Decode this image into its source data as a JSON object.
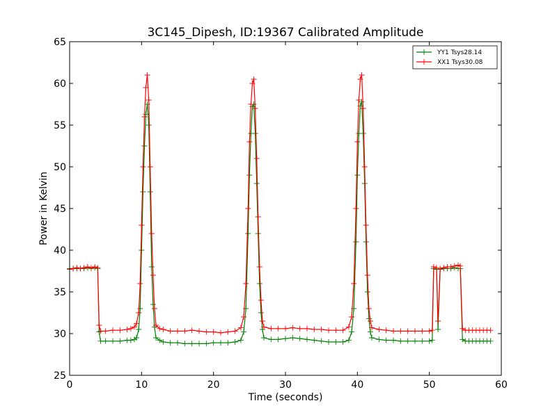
{
  "chart_data": {
    "type": "line",
    "title": "3C145_Dipesh, ID:19367 Calibrated Amplitude",
    "xlabel": "Time (seconds)",
    "ylabel": "Power in Kelvin",
    "xlim": [
      0,
      60
    ],
    "ylim": [
      25,
      65
    ],
    "xticks": [
      "0",
      "10",
      "20",
      "30",
      "40",
      "50",
      "60"
    ],
    "yticks": [
      "25",
      "30",
      "35",
      "40",
      "45",
      "50",
      "55",
      "60",
      "65"
    ],
    "grid": false,
    "legend_position": "top-right",
    "series": [
      {
        "name": "YY1 Tsys28.14",
        "color": "#008000",
        "marker": "plus",
        "points": [
          [
            0.0,
            37.8
          ],
          [
            0.5,
            37.8
          ],
          [
            1.0,
            37.8
          ],
          [
            1.5,
            37.8
          ],
          [
            2.0,
            37.8
          ],
          [
            2.5,
            37.9
          ],
          [
            3.0,
            37.8
          ],
          [
            3.5,
            37.9
          ],
          [
            3.9,
            37.8
          ],
          [
            4.1,
            30.2
          ],
          [
            4.3,
            29.1
          ],
          [
            5.0,
            29.1
          ],
          [
            6.0,
            29.1
          ],
          [
            7.0,
            29.1
          ],
          [
            8.0,
            29.2
          ],
          [
            8.5,
            29.2
          ],
          [
            9.0,
            29.3
          ],
          [
            9.3,
            29.5
          ],
          [
            9.6,
            30.5
          ],
          [
            9.8,
            33.0
          ],
          [
            10.0,
            40.0
          ],
          [
            10.2,
            47.0
          ],
          [
            10.4,
            52.5
          ],
          [
            10.6,
            56.3
          ],
          [
            10.8,
            57.5
          ],
          [
            11.0,
            55.0
          ],
          [
            11.2,
            47.0
          ],
          [
            11.4,
            38.0
          ],
          [
            11.6,
            33.5
          ],
          [
            11.8,
            30.8
          ],
          [
            12.0,
            29.5
          ],
          [
            12.5,
            29.2
          ],
          [
            13.0,
            29.0
          ],
          [
            14.0,
            28.9
          ],
          [
            15.0,
            28.9
          ],
          [
            16.0,
            28.8
          ],
          [
            17.0,
            28.8
          ],
          [
            18.0,
            28.8
          ],
          [
            19.0,
            28.8
          ],
          [
            20.0,
            28.9
          ],
          [
            21.0,
            28.9
          ],
          [
            22.0,
            28.9
          ],
          [
            23.0,
            29.0
          ],
          [
            23.8,
            29.2
          ],
          [
            24.2,
            30.2
          ],
          [
            24.5,
            33.0
          ],
          [
            24.8,
            42.0
          ],
          [
            25.0,
            49.0
          ],
          [
            25.2,
            54.0
          ],
          [
            25.4,
            57.2
          ],
          [
            25.6,
            57.5
          ],
          [
            25.8,
            54.0
          ],
          [
            26.0,
            48.0
          ],
          [
            26.2,
            42.0
          ],
          [
            26.4,
            36.0
          ],
          [
            26.6,
            32.5
          ],
          [
            26.8,
            30.5
          ],
          [
            27.0,
            29.5
          ],
          [
            28.0,
            29.3
          ],
          [
            29.0,
            29.3
          ],
          [
            30.0,
            29.4
          ],
          [
            31.0,
            29.5
          ],
          [
            32.0,
            29.4
          ],
          [
            33.0,
            29.3
          ],
          [
            34.0,
            29.2
          ],
          [
            35.0,
            29.1
          ],
          [
            36.0,
            29.0
          ],
          [
            37.0,
            29.0
          ],
          [
            38.0,
            29.0
          ],
          [
            38.8,
            29.2
          ],
          [
            39.2,
            30.2
          ],
          [
            39.5,
            33.0
          ],
          [
            39.8,
            41.0
          ],
          [
            40.0,
            49.0
          ],
          [
            40.2,
            54.0
          ],
          [
            40.4,
            57.3
          ],
          [
            40.6,
            57.8
          ],
          [
            40.8,
            54.0
          ],
          [
            41.0,
            48.0
          ],
          [
            41.2,
            41.0
          ],
          [
            41.4,
            35.0
          ],
          [
            41.6,
            31.8
          ],
          [
            41.8,
            30.2
          ],
          [
            42.0,
            29.5
          ],
          [
            43.0,
            29.3
          ],
          [
            44.0,
            29.2
          ],
          [
            45.0,
            29.2
          ],
          [
            46.0,
            29.1
          ],
          [
            47.0,
            29.1
          ],
          [
            48.0,
            29.1
          ],
          [
            49.0,
            29.1
          ],
          [
            50.0,
            29.1
          ],
          [
            50.4,
            29.2
          ],
          [
            50.6,
            37.8
          ],
          [
            51.0,
            37.7
          ],
          [
            51.2,
            30.5
          ],
          [
            51.5,
            37.7
          ],
          [
            52.0,
            37.8
          ],
          [
            52.5,
            37.8
          ],
          [
            53.0,
            37.8
          ],
          [
            53.5,
            37.9
          ],
          [
            54.0,
            37.8
          ],
          [
            54.3,
            37.8
          ],
          [
            54.6,
            29.3
          ],
          [
            55.0,
            29.1
          ],
          [
            55.5,
            29.1
          ],
          [
            56.0,
            29.1
          ],
          [
            56.5,
            29.1
          ],
          [
            57.0,
            29.1
          ],
          [
            57.5,
            29.1
          ],
          [
            58.0,
            29.1
          ],
          [
            58.5,
            29.1
          ]
        ]
      },
      {
        "name": "XX1 Tsys30.08",
        "color": "#ff0000",
        "marker": "plus",
        "points": [
          [
            0.0,
            37.7
          ],
          [
            0.5,
            37.8
          ],
          [
            1.0,
            37.9
          ],
          [
            1.5,
            37.8
          ],
          [
            2.0,
            37.9
          ],
          [
            2.5,
            38.0
          ],
          [
            3.0,
            37.9
          ],
          [
            3.5,
            38.0
          ],
          [
            3.9,
            37.9
          ],
          [
            4.1,
            31.0
          ],
          [
            4.3,
            30.3
          ],
          [
            5.0,
            30.3
          ],
          [
            6.0,
            30.4
          ],
          [
            7.0,
            30.4
          ],
          [
            8.0,
            30.5
          ],
          [
            8.5,
            30.6
          ],
          [
            9.0,
            30.8
          ],
          [
            9.3,
            31.2
          ],
          [
            9.6,
            32.5
          ],
          [
            9.8,
            36.0
          ],
          [
            10.0,
            43.0
          ],
          [
            10.2,
            50.0
          ],
          [
            10.4,
            56.0
          ],
          [
            10.6,
            59.5
          ],
          [
            10.8,
            61.0
          ],
          [
            11.0,
            58.0
          ],
          [
            11.2,
            50.0
          ],
          [
            11.4,
            42.0
          ],
          [
            11.6,
            37.0
          ],
          [
            11.8,
            33.0
          ],
          [
            12.0,
            31.0
          ],
          [
            12.5,
            30.6
          ],
          [
            13.0,
            30.5
          ],
          [
            14.0,
            30.3
          ],
          [
            15.0,
            30.3
          ],
          [
            16.0,
            30.3
          ],
          [
            17.0,
            30.4
          ],
          [
            18.0,
            30.3
          ],
          [
            19.0,
            30.2
          ],
          [
            20.0,
            30.2
          ],
          [
            21.0,
            30.1
          ],
          [
            22.0,
            30.2
          ],
          [
            23.0,
            30.3
          ],
          [
            23.8,
            30.7
          ],
          [
            24.2,
            32.0
          ],
          [
            24.5,
            36.0
          ],
          [
            24.8,
            45.0
          ],
          [
            25.0,
            53.0
          ],
          [
            25.2,
            57.5
          ],
          [
            25.4,
            60.0
          ],
          [
            25.6,
            60.5
          ],
          [
            25.8,
            57.0
          ],
          [
            26.0,
            51.0
          ],
          [
            26.2,
            44.0
          ],
          [
            26.4,
            38.0
          ],
          [
            26.6,
            34.0
          ],
          [
            26.8,
            31.5
          ],
          [
            27.0,
            30.8
          ],
          [
            28.0,
            30.6
          ],
          [
            29.0,
            30.6
          ],
          [
            30.0,
            30.6
          ],
          [
            31.0,
            30.7
          ],
          [
            32.0,
            30.6
          ],
          [
            33.0,
            30.6
          ],
          [
            34.0,
            30.5
          ],
          [
            35.0,
            30.5
          ],
          [
            36.0,
            30.4
          ],
          [
            37.0,
            30.4
          ],
          [
            38.0,
            30.4
          ],
          [
            38.8,
            30.8
          ],
          [
            39.2,
            32.0
          ],
          [
            39.5,
            36.0
          ],
          [
            39.8,
            45.0
          ],
          [
            40.0,
            53.0
          ],
          [
            40.2,
            58.0
          ],
          [
            40.4,
            60.5
          ],
          [
            40.6,
            61.0
          ],
          [
            40.8,
            57.0
          ],
          [
            41.0,
            50.0
          ],
          [
            41.2,
            43.0
          ],
          [
            41.4,
            37.0
          ],
          [
            41.6,
            33.0
          ],
          [
            41.8,
            31.5
          ],
          [
            42.0,
            30.7
          ],
          [
            43.0,
            30.5
          ],
          [
            44.0,
            30.4
          ],
          [
            45.0,
            30.3
          ],
          [
            46.0,
            30.3
          ],
          [
            47.0,
            30.3
          ],
          [
            48.0,
            30.3
          ],
          [
            49.0,
            30.3
          ],
          [
            50.0,
            30.3
          ],
          [
            50.4,
            30.4
          ],
          [
            50.6,
            38.0
          ],
          [
            51.0,
            37.9
          ],
          [
            51.2,
            31.5
          ],
          [
            51.5,
            37.8
          ],
          [
            52.0,
            37.9
          ],
          [
            52.5,
            38.0
          ],
          [
            53.0,
            38.0
          ],
          [
            53.5,
            38.1
          ],
          [
            54.0,
            38.2
          ],
          [
            54.3,
            38.1
          ],
          [
            54.6,
            30.6
          ],
          [
            55.0,
            30.4
          ],
          [
            55.5,
            30.4
          ],
          [
            56.0,
            30.4
          ],
          [
            56.5,
            30.4
          ],
          [
            57.0,
            30.4
          ],
          [
            57.5,
            30.4
          ],
          [
            58.0,
            30.4
          ],
          [
            58.5,
            30.4
          ]
        ]
      }
    ]
  }
}
